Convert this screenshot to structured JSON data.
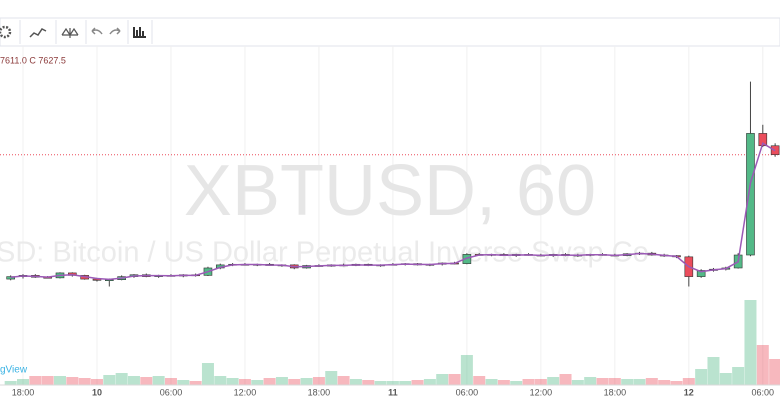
{
  "chart_data": {
    "type": "candlestick",
    "watermark": "XBTUSD, 60",
    "watermark_subtitle": "SD: Bitcoin / US Dollar Perpetual Inverse Swap Co",
    "logo": "gView",
    "legend_text": "7611.0 C 7627.5",
    "categories": [
      null,
      "18:00",
      null,
      null,
      null,
      null,
      null,
      "10",
      null,
      null,
      null,
      null,
      null,
      "06:00",
      null,
      null,
      null,
      null,
      null,
      "12:00",
      null,
      null,
      null,
      null,
      null,
      "18:00",
      null,
      null,
      null,
      null,
      null,
      "11",
      null,
      null,
      null,
      null,
      null,
      "06:00",
      null,
      null,
      null,
      null,
      null,
      "12:00",
      null,
      null,
      null,
      null,
      null,
      "18:00",
      null,
      null,
      null,
      null,
      null,
      "12",
      null,
      null,
      null,
      null,
      null,
      "06:00",
      null
    ],
    "candles": [
      [
        6620,
        6650,
        6610,
        6640
      ],
      [
        6640,
        6660,
        6625,
        6650
      ],
      [
        6650,
        6660,
        6630,
        6635
      ],
      [
        6635,
        6645,
        6625,
        6630
      ],
      [
        6630,
        6675,
        6625,
        6670
      ],
      [
        6670,
        6675,
        6640,
        6650
      ],
      [
        6650,
        6655,
        6615,
        6620
      ],
      [
        6620,
        6630,
        6600,
        6610
      ],
      [
        6610,
        6625,
        6560,
        6615
      ],
      [
        6615,
        6650,
        6610,
        6640
      ],
      [
        6640,
        6660,
        6630,
        6655
      ],
      [
        6655,
        6665,
        6635,
        6640
      ],
      [
        6640,
        6655,
        6630,
        6650
      ],
      [
        6650,
        6660,
        6640,
        6645
      ],
      [
        6645,
        6660,
        6635,
        6655
      ],
      [
        6655,
        6665,
        6640,
        6650
      ],
      [
        6650,
        6720,
        6645,
        6710
      ],
      [
        6710,
        6745,
        6700,
        6735
      ],
      [
        6735,
        6750,
        6725,
        6740
      ],
      [
        6740,
        6750,
        6730,
        6735
      ],
      [
        6735,
        6745,
        6725,
        6740
      ],
      [
        6740,
        6750,
        6730,
        6730
      ],
      [
        6730,
        6740,
        6720,
        6735
      ],
      [
        6735,
        6740,
        6700,
        6710
      ],
      [
        6710,
        6735,
        6705,
        6730
      ],
      [
        6730,
        6740,
        6720,
        6725
      ],
      [
        6725,
        6740,
        6720,
        6735
      ],
      [
        6735,
        6745,
        6725,
        6730
      ],
      [
        6730,
        6745,
        6725,
        6740
      ],
      [
        6740,
        6745,
        6725,
        6730
      ],
      [
        6730,
        6740,
        6720,
        6735
      ],
      [
        6735,
        6750,
        6730,
        6740
      ],
      [
        6740,
        6750,
        6730,
        6745
      ],
      [
        6745,
        6750,
        6730,
        6735
      ],
      [
        6735,
        6745,
        6725,
        6740
      ],
      [
        6740,
        6755,
        6730,
        6750
      ],
      [
        6750,
        6760,
        6740,
        6745
      ],
      [
        6745,
        6830,
        6740,
        6820
      ],
      [
        6820,
        6830,
        6810,
        6815
      ],
      [
        6815,
        6825,
        6805,
        6820
      ],
      [
        6820,
        6830,
        6810,
        6810
      ],
      [
        6810,
        6825,
        6800,
        6820
      ],
      [
        6820,
        6830,
        6810,
        6815
      ],
      [
        6815,
        6825,
        6805,
        6810
      ],
      [
        6810,
        6825,
        6800,
        6820
      ],
      [
        6820,
        6830,
        6805,
        6810
      ],
      [
        6810,
        6825,
        6800,
        6815
      ],
      [
        6815,
        6825,
        6805,
        6820
      ],
      [
        6820,
        6830,
        6810,
        6815
      ],
      [
        6815,
        6825,
        6805,
        6810
      ],
      [
        6810,
        6830,
        6805,
        6825
      ],
      [
        6825,
        6840,
        6815,
        6830
      ],
      [
        6830,
        6840,
        6810,
        6815
      ],
      [
        6815,
        6825,
        6800,
        6810
      ],
      [
        6810,
        6815,
        6790,
        6800
      ],
      [
        6800,
        6810,
        6560,
        6640
      ],
      [
        6640,
        6700,
        6630,
        6690
      ],
      [
        6690,
        6710,
        6680,
        6700
      ],
      [
        6700,
        6720,
        6690,
        6710
      ],
      [
        6710,
        6830,
        6705,
        6815
      ],
      [
        6815,
        8220,
        6805,
        7800
      ],
      [
        7800,
        7870,
        7690,
        7700
      ],
      [
        7700,
        7720,
        7611,
        7627.5
      ]
    ],
    "ma": [
      6635,
      6645,
      6642,
      6636,
      6650,
      6655,
      6640,
      6625,
      6618,
      6628,
      6645,
      6648,
      6648,
      6647,
      6650,
      6650,
      6680,
      6715,
      6735,
      6738,
      6738,
      6734,
      6733,
      6720,
      6722,
      6727,
      6731,
      6731,
      6735,
      6733,
      6733,
      6737,
      6741,
      6739,
      6738,
      6745,
      6747,
      6790,
      6815,
      6818,
      6813,
      6815,
      6816,
      6812,
      6815,
      6814,
      6813,
      6817,
      6817,
      6812,
      6818,
      6827,
      6822,
      6812,
      6804,
      6720,
      6680,
      6695,
      6705,
      6760,
      7400,
      7720,
      7660
    ],
    "volume": [
      20,
      30,
      45,
      45,
      45,
      40,
      35,
      30,
      50,
      60,
      45,
      40,
      45,
      35,
      25,
      20,
      110,
      45,
      35,
      30,
      25,
      35,
      40,
      30,
      35,
      40,
      70,
      45,
      30,
      25,
      20,
      20,
      20,
      25,
      30,
      55,
      55,
      150,
      45,
      30,
      25,
      20,
      30,
      30,
      40,
      55,
      25,
      40,
      35,
      35,
      30,
      30,
      35,
      25,
      20,
      35,
      80,
      140,
      60,
      90,
      425,
      200,
      130
    ],
    "ylim": [
      5600,
      8500
    ],
    "vlim": [
      0,
      500
    ],
    "up_color": "#53b987",
    "down_color": "#eb4d5c",
    "ma_color": "#9b59b6",
    "grid": true
  }
}
